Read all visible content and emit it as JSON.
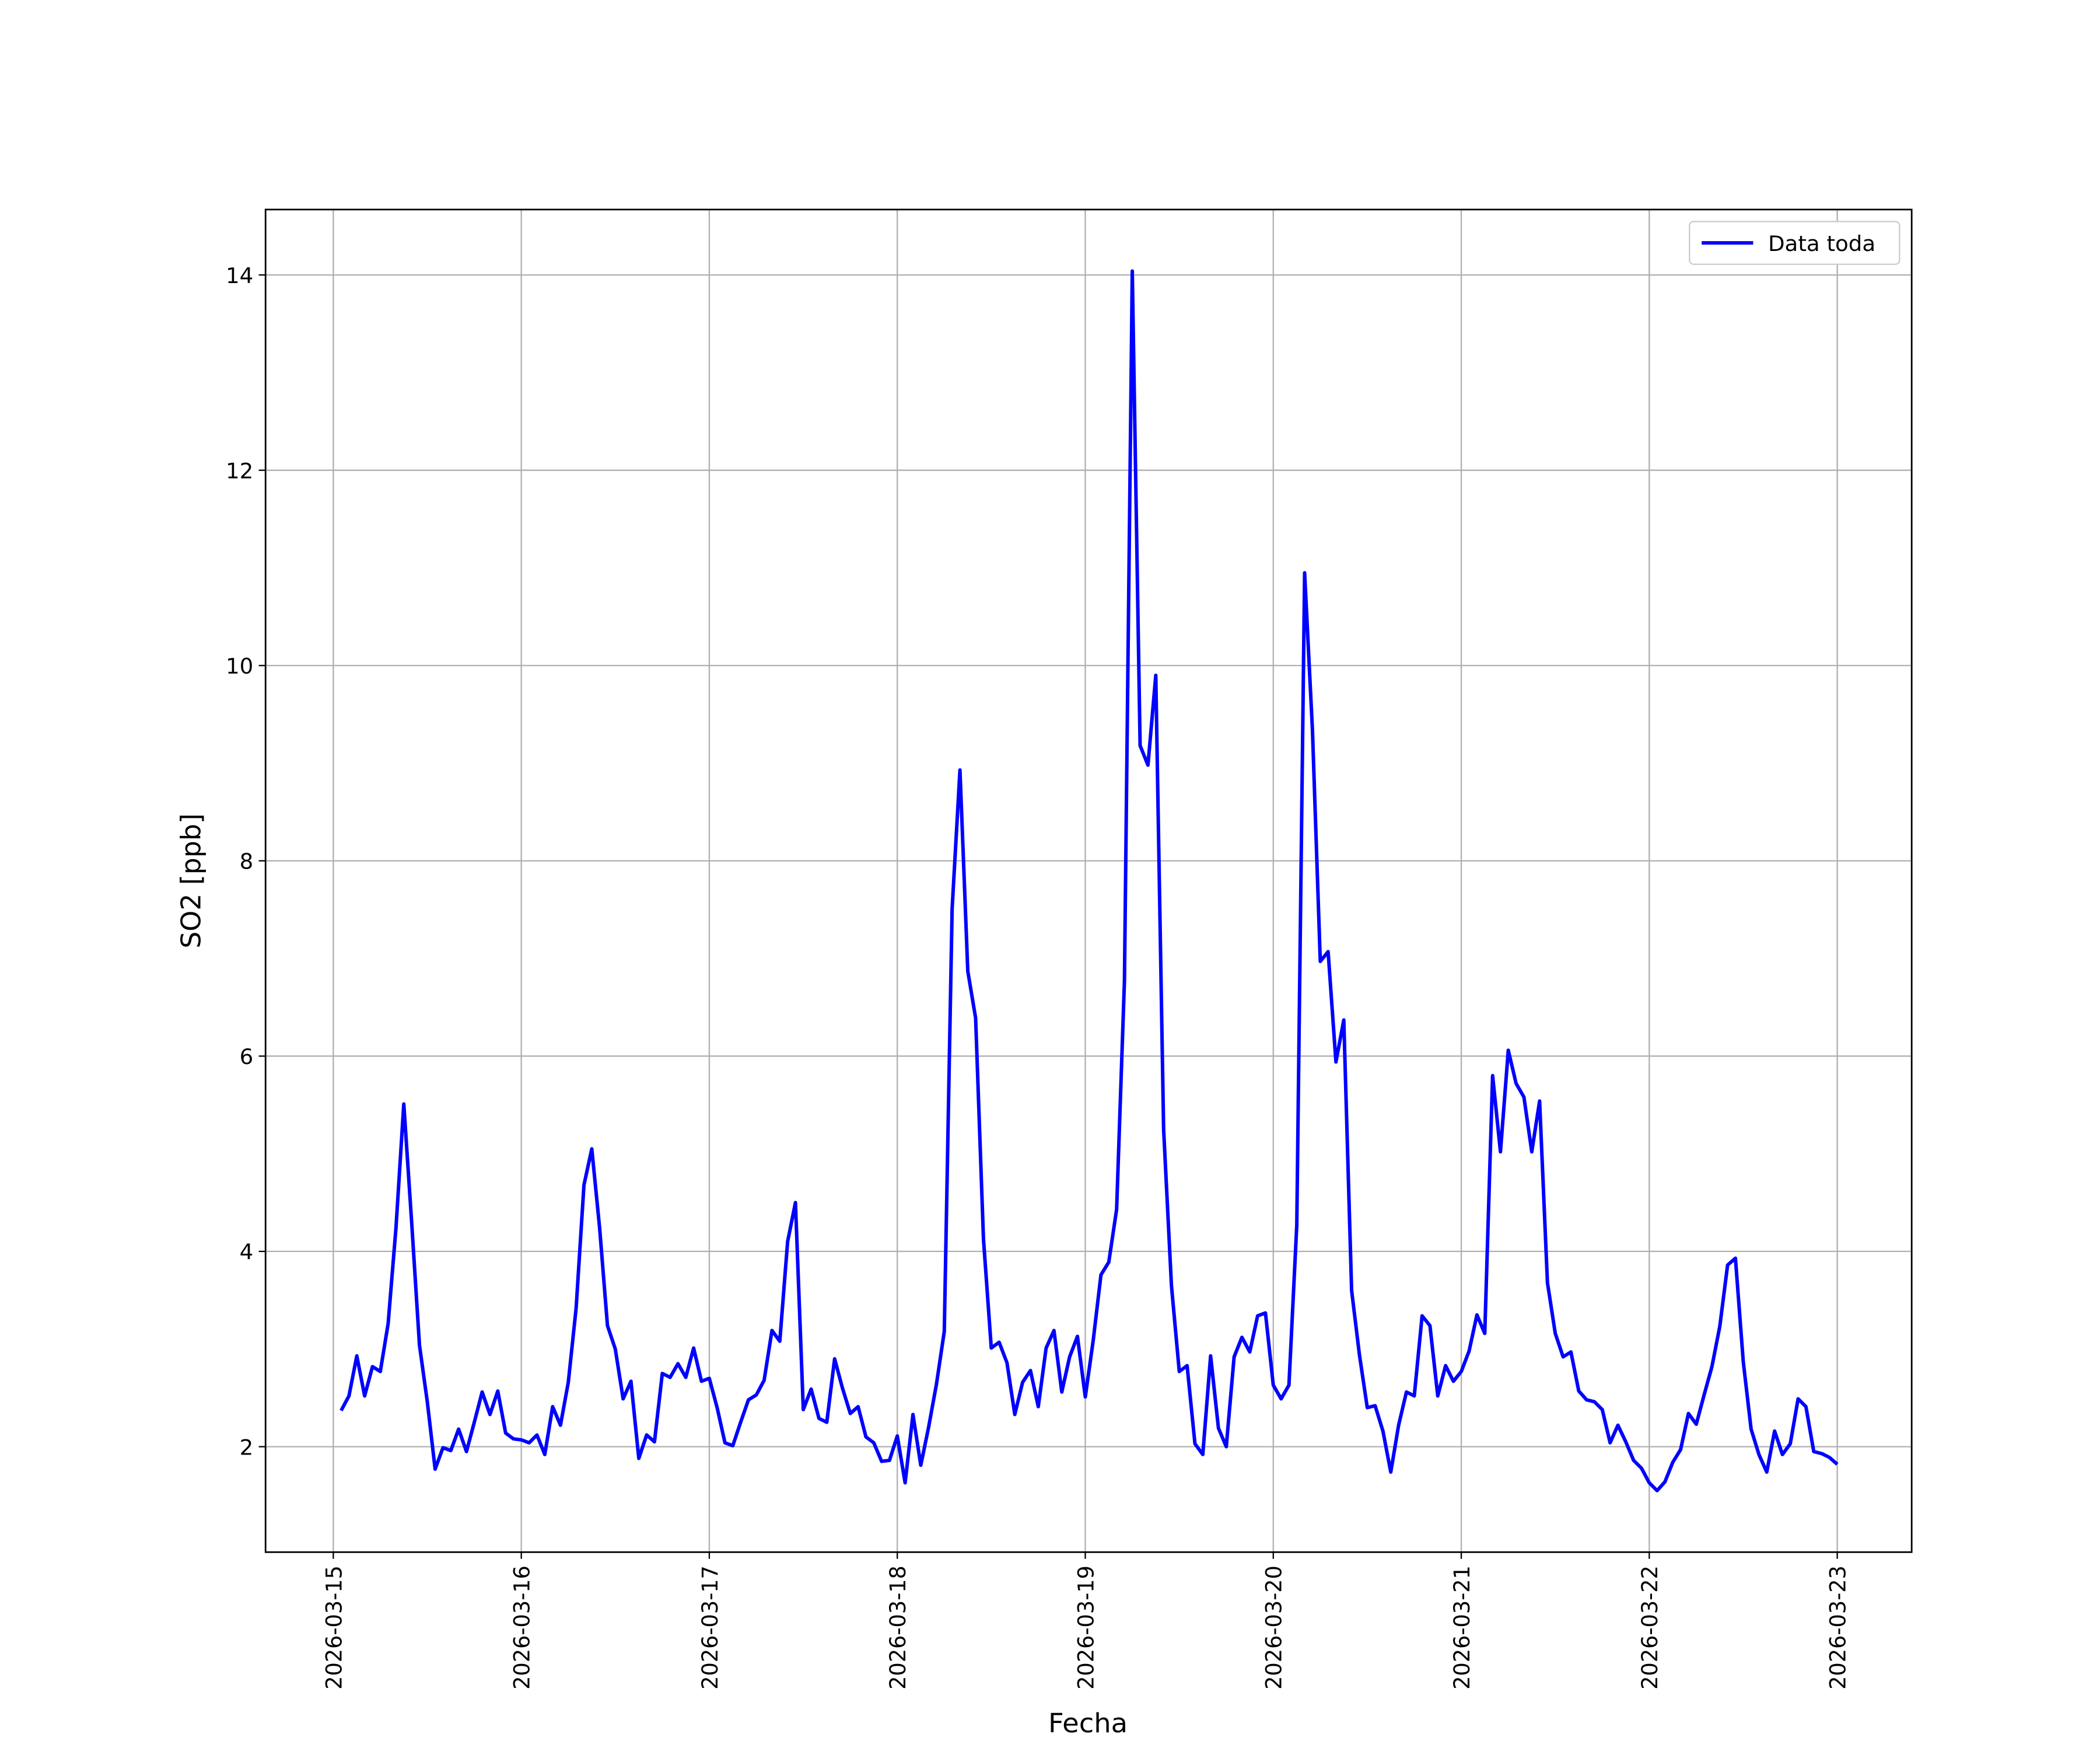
{
  "chart_data": {
    "type": "line",
    "xlabel": "Fecha",
    "ylabel": "SO2 [ppb]",
    "x": [
      "2026-03-15 01:00",
      "2026-03-15 02:00",
      "2026-03-15 03:00",
      "2026-03-15 04:00",
      "2026-03-15 05:00",
      "2026-03-15 06:00",
      "2026-03-15 07:00",
      "2026-03-15 08:00",
      "2026-03-15 09:00",
      "2026-03-15 10:00",
      "2026-03-15 11:00",
      "2026-03-15 12:00",
      "2026-03-15 13:00",
      "2026-03-15 14:00",
      "2026-03-15 15:00",
      "2026-03-15 16:00",
      "2026-03-15 17:00",
      "2026-03-15 18:00",
      "2026-03-15 19:00",
      "2026-03-15 20:00",
      "2026-03-15 21:00",
      "2026-03-15 22:00",
      "2026-03-15 23:00",
      "2026-03-16 00:00",
      "2026-03-16 01:00",
      "2026-03-16 02:00",
      "2026-03-16 03:00",
      "2026-03-16 04:00",
      "2026-03-16 05:00",
      "2026-03-16 06:00",
      "2026-03-16 07:00",
      "2026-03-16 08:00",
      "2026-03-16 09:00",
      "2026-03-16 10:00",
      "2026-03-16 11:00",
      "2026-03-16 12:00",
      "2026-03-16 13:00",
      "2026-03-16 14:00",
      "2026-03-16 15:00",
      "2026-03-16 16:00",
      "2026-03-16 17:00",
      "2026-03-16 18:00",
      "2026-03-16 19:00",
      "2026-03-16 20:00",
      "2026-03-16 21:00",
      "2026-03-16 22:00",
      "2026-03-16 23:00",
      "2026-03-17 00:00",
      "2026-03-17 01:00",
      "2026-03-17 02:00",
      "2026-03-17 03:00",
      "2026-03-17 04:00",
      "2026-03-17 05:00",
      "2026-03-17 06:00",
      "2026-03-17 07:00",
      "2026-03-17 08:00",
      "2026-03-17 09:00",
      "2026-03-17 10:00",
      "2026-03-17 11:00",
      "2026-03-17 12:00",
      "2026-03-17 13:00",
      "2026-03-17 14:00",
      "2026-03-17 15:00",
      "2026-03-17 16:00",
      "2026-03-17 17:00",
      "2026-03-17 18:00",
      "2026-03-17 19:00",
      "2026-03-17 20:00",
      "2026-03-17 21:00",
      "2026-03-17 22:00",
      "2026-03-17 23:00",
      "2026-03-18 00:00",
      "2026-03-18 01:00",
      "2026-03-18 02:00",
      "2026-03-18 03:00",
      "2026-03-18 04:00",
      "2026-03-18 05:00",
      "2026-03-18 06:00",
      "2026-03-18 07:00",
      "2026-03-18 08:00",
      "2026-03-18 09:00",
      "2026-03-18 10:00",
      "2026-03-18 11:00",
      "2026-03-18 12:00",
      "2026-03-18 13:00",
      "2026-03-18 14:00",
      "2026-03-18 15:00",
      "2026-03-18 16:00",
      "2026-03-18 17:00",
      "2026-03-18 18:00",
      "2026-03-18 19:00",
      "2026-03-18 20:00",
      "2026-03-18 21:00",
      "2026-03-18 22:00",
      "2026-03-18 23:00",
      "2026-03-19 00:00",
      "2026-03-19 01:00",
      "2026-03-19 02:00",
      "2026-03-19 03:00",
      "2026-03-19 04:00",
      "2026-03-19 05:00",
      "2026-03-19 06:00",
      "2026-03-19 07:00",
      "2026-03-19 08:00",
      "2026-03-19 09:00",
      "2026-03-19 10:00",
      "2026-03-19 11:00",
      "2026-03-19 12:00",
      "2026-03-19 13:00",
      "2026-03-19 14:00",
      "2026-03-19 15:00",
      "2026-03-19 16:00",
      "2026-03-19 17:00",
      "2026-03-19 18:00",
      "2026-03-19 19:00",
      "2026-03-19 20:00",
      "2026-03-19 21:00",
      "2026-03-19 22:00",
      "2026-03-19 23:00",
      "2026-03-20 00:00",
      "2026-03-20 01:00",
      "2026-03-20 02:00",
      "2026-03-20 03:00",
      "2026-03-20 04:00",
      "2026-03-20 05:00",
      "2026-03-20 06:00",
      "2026-03-20 07:00",
      "2026-03-20 08:00",
      "2026-03-20 09:00",
      "2026-03-20 10:00",
      "2026-03-20 11:00",
      "2026-03-20 12:00",
      "2026-03-20 13:00",
      "2026-03-20 14:00",
      "2026-03-20 15:00",
      "2026-03-20 16:00",
      "2026-03-20 17:00",
      "2026-03-20 18:00",
      "2026-03-20 19:00",
      "2026-03-20 20:00",
      "2026-03-20 21:00",
      "2026-03-20 22:00",
      "2026-03-20 23:00",
      "2026-03-21 00:00",
      "2026-03-21 01:00",
      "2026-03-21 02:00",
      "2026-03-21 03:00",
      "2026-03-21 04:00",
      "2026-03-21 05:00",
      "2026-03-21 06:00",
      "2026-03-21 07:00",
      "2026-03-21 08:00",
      "2026-03-21 09:00",
      "2026-03-21 10:00",
      "2026-03-21 11:00",
      "2026-03-21 12:00",
      "2026-03-21 13:00",
      "2026-03-21 14:00",
      "2026-03-21 15:00",
      "2026-03-21 16:00",
      "2026-03-21 17:00",
      "2026-03-21 18:00",
      "2026-03-21 19:00",
      "2026-03-21 20:00",
      "2026-03-21 21:00",
      "2026-03-21 22:00",
      "2026-03-21 23:00",
      "2026-03-22 00:00",
      "2026-03-22 01:00",
      "2026-03-22 02:00",
      "2026-03-22 03:00",
      "2026-03-22 04:00",
      "2026-03-22 05:00",
      "2026-03-22 06:00",
      "2026-03-22 07:00",
      "2026-03-22 08:00",
      "2026-03-22 09:00",
      "2026-03-22 10:00",
      "2026-03-22 11:00",
      "2026-03-22 12:00",
      "2026-03-22 13:00",
      "2026-03-22 14:00",
      "2026-03-22 15:00",
      "2026-03-22 16:00",
      "2026-03-22 17:00",
      "2026-03-22 18:00",
      "2026-03-22 19:00",
      "2026-03-22 20:00",
      "2026-03-22 21:00",
      "2026-03-22 22:00",
      "2026-03-22 23:00",
      "2026-03-23 00:00"
    ],
    "series": [
      {
        "name": "Data toda",
        "color": "#0000ff",
        "values": [
          2.37,
          2.52,
          2.93,
          2.52,
          2.82,
          2.77,
          3.26,
          4.24,
          5.51,
          4.3,
          3.04,
          2.46,
          1.77,
          1.99,
          1.96,
          2.18,
          1.95,
          2.25,
          2.56,
          2.33,
          2.57,
          2.14,
          2.08,
          2.07,
          2.04,
          2.12,
          1.92,
          2.41,
          2.22,
          2.66,
          3.42,
          4.68,
          5.05,
          4.24,
          3.24,
          3.0,
          2.49,
          2.67,
          1.88,
          2.12,
          2.05,
          2.75,
          2.71,
          2.85,
          2.71,
          3.01,
          2.67,
          2.7,
          2.4,
          2.04,
          2.01,
          2.25,
          2.48,
          2.53,
          2.68,
          3.19,
          3.08,
          4.1,
          4.5,
          2.38,
          2.59,
          2.29,
          2.25,
          2.9,
          2.6,
          2.34,
          2.41,
          2.1,
          2.04,
          1.85,
          1.86,
          2.11,
          1.63,
          2.33,
          1.81,
          2.2,
          2.64,
          3.18,
          7.51,
          8.93,
          6.87,
          6.39,
          4.13,
          3.01,
          3.07,
          2.86,
          2.33,
          2.66,
          2.78,
          2.41,
          3.01,
          3.19,
          2.56,
          2.92,
          3.13,
          2.51,
          3.08,
          3.76,
          3.89,
          4.43,
          6.77,
          14.04,
          9.18,
          8.98,
          9.9,
          5.25,
          3.65,
          2.77,
          2.83,
          2.03,
          1.92,
          2.93,
          2.19,
          2.0,
          2.92,
          3.12,
          2.97,
          3.34,
          3.37,
          2.63,
          2.49,
          2.63,
          4.27,
          10.95,
          9.34,
          6.97,
          7.07,
          5.94,
          6.37,
          3.6,
          2.94,
          2.4,
          2.42,
          2.16,
          1.74,
          2.22,
          2.56,
          2.52,
          3.34,
          3.24,
          2.52,
          2.83,
          2.67,
          2.77,
          2.98,
          3.35,
          3.16,
          5.8,
          5.02,
          6.06,
          5.72,
          5.58,
          5.02,
          5.54,
          3.68,
          3.16,
          2.92,
          2.97,
          2.57,
          2.48,
          2.46,
          2.38,
          2.04,
          2.22,
          2.05,
          1.86,
          1.78,
          1.63,
          1.55,
          1.64,
          1.84,
          1.97,
          2.34,
          2.23,
          2.53,
          2.82,
          3.23,
          3.86,
          3.93,
          2.87,
          2.18,
          1.92,
          1.74,
          2.16,
          1.92,
          2.03,
          2.49,
          2.41,
          1.95,
          1.93,
          1.89,
          1.82
        ]
      }
    ],
    "xlim": [
      "2026-03-14 15:21",
      "2026-03-23 09:30"
    ],
    "xticks": [
      "2026-03-15",
      "2026-03-16",
      "2026-03-17",
      "2026-03-18",
      "2026-03-19",
      "2026-03-20",
      "2026-03-21",
      "2026-03-22",
      "2026-03-23"
    ],
    "ylim": [
      0.92,
      14.67
    ],
    "yticks": [
      2,
      4,
      6,
      8,
      10,
      12,
      14
    ],
    "grid": true,
    "legend": "upper right"
  }
}
